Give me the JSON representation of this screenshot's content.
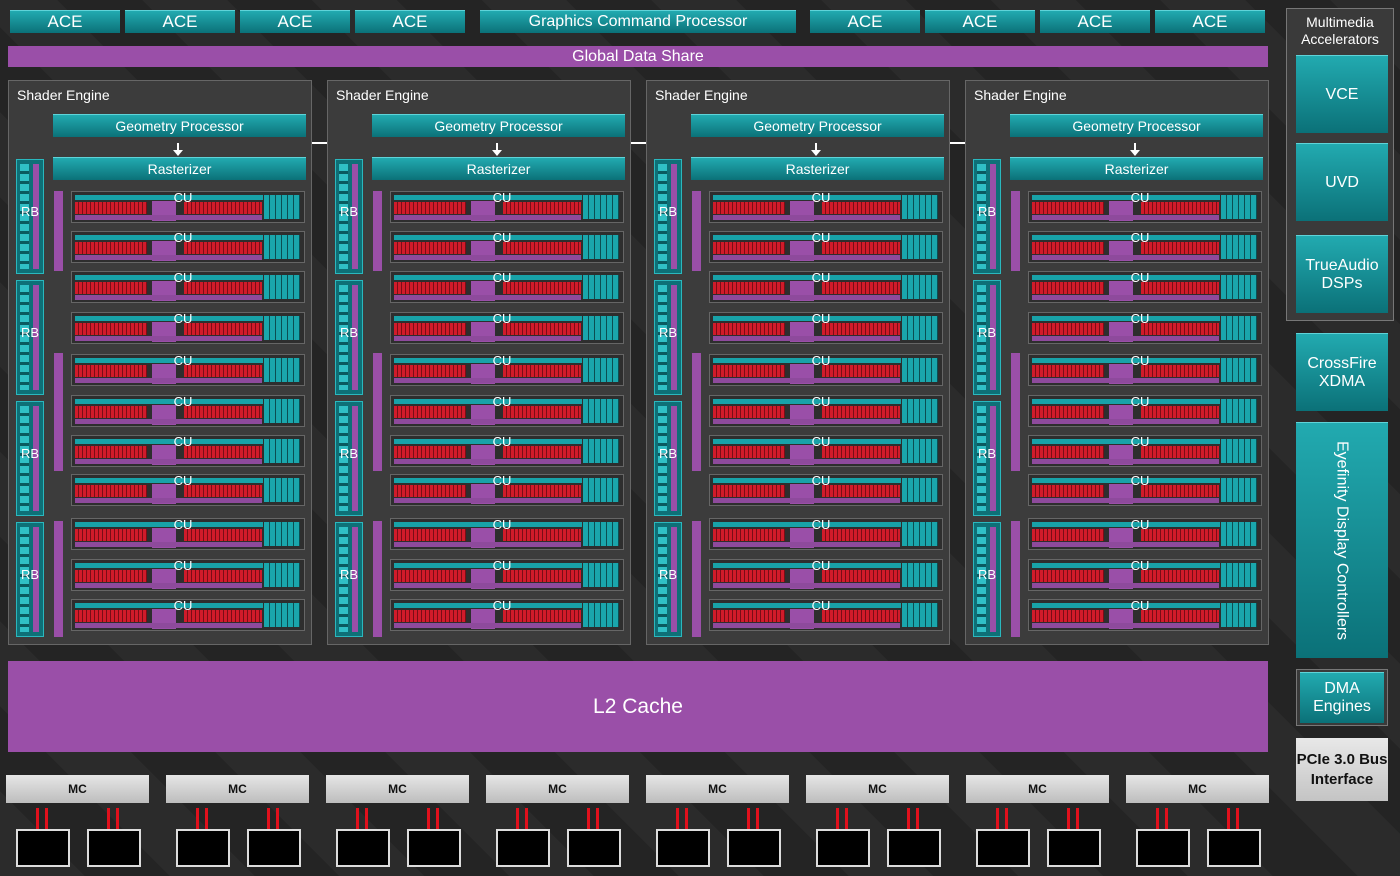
{
  "command": {
    "aces_left": [
      "ACE",
      "ACE",
      "ACE",
      "ACE"
    ],
    "graphics_command_processor": "Graphics Command Processor",
    "aces_right": [
      "ACE",
      "ACE",
      "ACE",
      "ACE"
    ]
  },
  "global_data_share": "Global Data Share",
  "shader_engines": [
    {
      "label": "Shader Engine",
      "geometry_processor": "Geometry Processor",
      "rasterizer": "Rasterizer",
      "render_backends": [
        "RB",
        "RB",
        "RB",
        "RB"
      ],
      "compute_units": [
        "CU",
        "CU",
        "CU",
        "CU",
        "CU",
        "CU",
        "CU",
        "CU",
        "CU",
        "CU",
        "CU"
      ]
    },
    {
      "label": "Shader Engine",
      "geometry_processor": "Geometry Processor",
      "rasterizer": "Rasterizer",
      "render_backends": [
        "RB",
        "RB",
        "RB",
        "RB"
      ],
      "compute_units": [
        "CU",
        "CU",
        "CU",
        "CU",
        "CU",
        "CU",
        "CU",
        "CU",
        "CU",
        "CU",
        "CU"
      ]
    },
    {
      "label": "Shader Engine",
      "geometry_processor": "Geometry Processor",
      "rasterizer": "Rasterizer",
      "render_backends": [
        "RB",
        "RB",
        "RB",
        "RB"
      ],
      "compute_units": [
        "CU",
        "CU",
        "CU",
        "CU",
        "CU",
        "CU",
        "CU",
        "CU",
        "CU",
        "CU",
        "CU"
      ]
    },
    {
      "label": "Shader Engine",
      "geometry_processor": "Geometry Processor",
      "rasterizer": "Rasterizer",
      "render_backends": [
        "RB",
        "RB",
        "RB",
        "RB"
      ],
      "compute_units": [
        "CU",
        "CU",
        "CU",
        "CU",
        "CU",
        "CU",
        "CU",
        "CU",
        "CU",
        "CU",
        "CU"
      ]
    }
  ],
  "l2_cache": "L2 Cache",
  "memory_controllers": [
    "MC",
    "MC",
    "MC",
    "MC",
    "MC",
    "MC",
    "MC",
    "MC"
  ],
  "side_panel": {
    "multimedia": {
      "title": "Multimedia Accelerators",
      "items": [
        "VCE",
        "UVD",
        "TrueAudio DSPs"
      ]
    },
    "crossfire": "CrossFire XDMA",
    "eyefinity": "Eyefinity Display Controllers",
    "dma": "DMA Engines",
    "pcie": "PCIe 3.0 Bus Interface"
  }
}
